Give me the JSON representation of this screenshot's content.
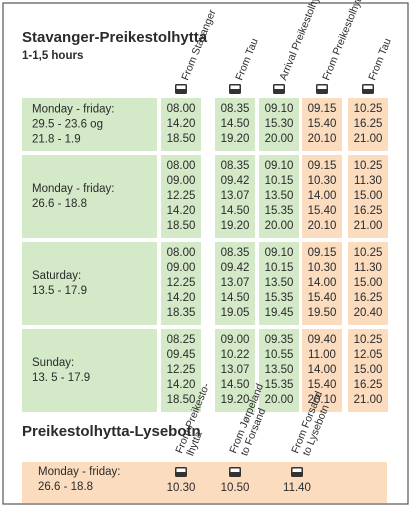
{
  "title": "Stavanger-Preikestolhytta",
  "subtitle": "1-1,5 hours",
  "columns": [
    "From Stavanger",
    "From Tau",
    "Arrival Preikestolhytta",
    "From Preikestolhytta",
    "From Tau"
  ],
  "blocks": [
    {
      "label": [
        "Monday - friday:",
        "29.5 - 23.6 og",
        "21.8 - 1.9"
      ],
      "rows": [
        [
          "08.00",
          "08.35",
          "09.10",
          "09.15",
          "10.25"
        ],
        [
          "14.20",
          "14.50",
          "15.30",
          "15.40",
          "16.25"
        ],
        [
          "18.50",
          "19.20",
          "20.00",
          "20.10",
          "21.00"
        ]
      ]
    },
    {
      "label": [
        "Monday - friday:",
        "26.6 - 18.8"
      ],
      "rows": [
        [
          "08.00",
          "08.35",
          "09.10",
          "09.15",
          "10.25"
        ],
        [
          "09.00",
          "09.42",
          "10.15",
          "10.30",
          "11.30"
        ],
        [
          "12.25",
          "13.07",
          "13.50",
          "14.00",
          "15.00"
        ],
        [
          "14.20",
          "14.50",
          "15.35",
          "15.40",
          "16.25"
        ],
        [
          "18.50",
          "19.20",
          "20.00",
          "20.10",
          "21.00"
        ]
      ]
    },
    {
      "label": [
        "Saturday:",
        "13.5 - 17.9"
      ],
      "rows": [
        [
          "08.00",
          "08.35",
          "09.10",
          "09.15",
          "10.25"
        ],
        [
          "09.00",
          "09.42",
          "10.15",
          "10.30",
          "11.30"
        ],
        [
          "12.25",
          "13.07",
          "13.50",
          "14.00",
          "15.00"
        ],
        [
          "14.20",
          "14.50",
          "15.35",
          "15.40",
          "16.25"
        ],
        [
          "18.35",
          "19.05",
          "19.45",
          "19.50",
          "20.40"
        ]
      ]
    },
    {
      "label": [
        "Sunday:",
        "13. 5 - 17.9"
      ],
      "rows": [
        [
          "08.25",
          "09.00",
          "09.35",
          "09.40",
          "10.25"
        ],
        [
          "09.45",
          "10.22",
          "10.55",
          "11.00",
          "12.05"
        ],
        [
          "12.25",
          "13.07",
          "13.50",
          "14.00",
          "15.00"
        ],
        [
          "14.20",
          "14.50",
          "15.35",
          "15.40",
          "16.25"
        ],
        [
          "18.50",
          "19.20",
          "20.00",
          "20.10",
          "21.00"
        ]
      ]
    }
  ],
  "section2": {
    "title": "Preikestolhytta-Lysebotn",
    "columns": [
      [
        "From Preikesto-",
        "lhytta"
      ],
      [
        "From Jørpeland",
        "to Forsand"
      ],
      [
        "From Forsand",
        "to Lysebotn"
      ]
    ],
    "blocks": [
      {
        "label": [
          "Monday - friday:",
          "26.6 - 18.8"
        ],
        "rows": [
          [
            "10.30",
            "10.50",
            "11.40"
          ]
        ]
      }
    ]
  }
}
